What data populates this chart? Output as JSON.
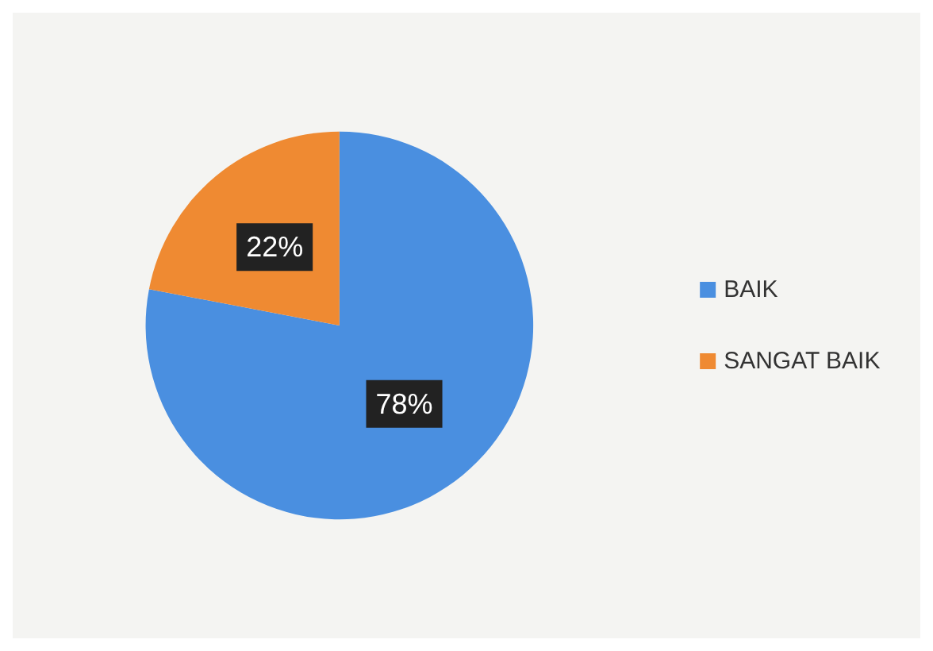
{
  "chart_data": {
    "type": "pie",
    "categories": [
      "BAIK",
      "SANGAT BAIK"
    ],
    "values": [
      78,
      22
    ],
    "colors": [
      "#4a8fe0",
      "#ef8a32"
    ],
    "value_labels": [
      "78%",
      "22%"
    ],
    "legend": "right"
  }
}
